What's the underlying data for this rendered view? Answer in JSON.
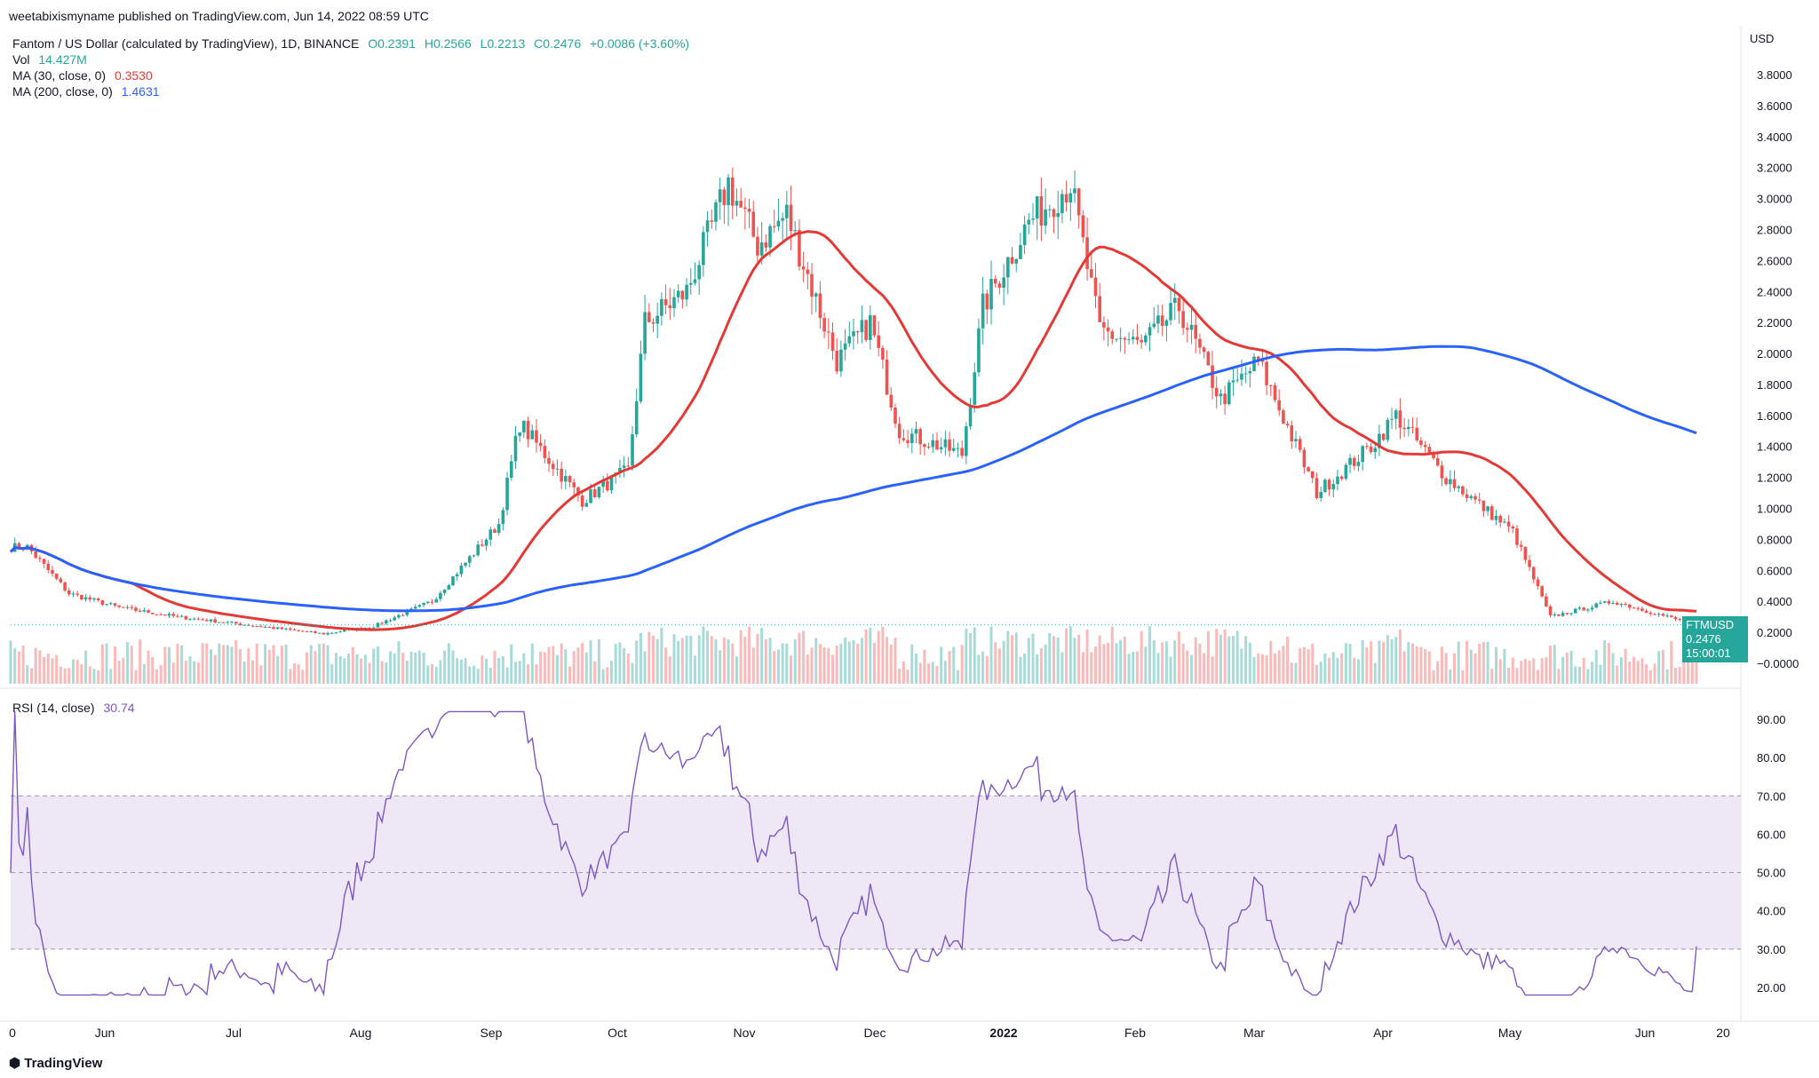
{
  "header": {
    "published": "weetabixismyname published on TradingView.com, Jun 14, 2022 08:59 UTC",
    "symbol_line": "Fantom / US Dollar (calculated by TradingView), 1D, BINANCE",
    "open": "O0.2391",
    "high": "H0.2566",
    "low": "L0.2213",
    "close": "C0.2476",
    "change": "+0.0086 (+3.60%)",
    "vol_label": "Vol",
    "vol_value": "14.427M",
    "ma30_label": "MA (30, close, 0)",
    "ma30_value": "0.3530",
    "ma200_label": "MA (200, close, 0)",
    "ma200_value": "1.4631",
    "rsi_label": "RSI (14, close)",
    "rsi_value": "30.74"
  },
  "price_tag": {
    "symbol": "FTMUSD",
    "price": "0.2476",
    "countdown": "15:00:01"
  },
  "footer": {
    "brand": "TradingView"
  },
  "colors": {
    "up": "#26a69a",
    "down": "#ef5350",
    "ma30": "#e53935",
    "ma200": "#2962ff",
    "rsi": "#7e57c2",
    "rsi_band": "#ede7f6"
  },
  "chart_data": {
    "type": "candlestick",
    "currency": "USD",
    "price_axis_ticks": [
      "3.8000",
      "3.6000",
      "3.4000",
      "3.2000",
      "3.0000",
      "2.8000",
      "2.6000",
      "2.4000",
      "2.2000",
      "2.0000",
      "1.8000",
      "1.6000",
      "1.4000",
      "1.2000",
      "1.0000",
      "0.8000",
      "0.6000",
      "0.4000",
      "0.2000",
      "−0.0000"
    ],
    "rsi_axis_ticks": [
      "90.00",
      "80.00",
      "70.00",
      "60.00",
      "50.00",
      "40.00",
      "30.00",
      "20.00"
    ],
    "time_axis_labels": [
      "0",
      "Jun",
      "Jul",
      "Aug",
      "Sep",
      "Oct",
      "Nov",
      "Dec",
      "2022",
      "Feb",
      "Mar",
      "Apr",
      "May",
      "Jun",
      "20"
    ],
    "price_keypoints": [
      {
        "date": "2021-05-10",
        "close": 0.75
      },
      {
        "date": "2021-05-20",
        "close": 0.45
      },
      {
        "date": "2021-06-01",
        "close": 0.36
      },
      {
        "date": "2021-06-15",
        "close": 0.3
      },
      {
        "date": "2021-07-01",
        "close": 0.25
      },
      {
        "date": "2021-07-20",
        "close": 0.19
      },
      {
        "date": "2021-08-01",
        "close": 0.24
      },
      {
        "date": "2021-08-15",
        "close": 0.4
      },
      {
        "date": "2021-08-31",
        "close": 0.9
      },
      {
        "date": "2021-09-05",
        "close": 1.55
      },
      {
        "date": "2021-09-20",
        "close": 1.05
      },
      {
        "date": "2021-10-01",
        "close": 1.25
      },
      {
        "date": "2021-10-05",
        "close": 2.2
      },
      {
        "date": "2021-10-15",
        "close": 2.4
      },
      {
        "date": "2021-10-25",
        "close": 3.1
      },
      {
        "date": "2021-11-01",
        "close": 2.7
      },
      {
        "date": "2021-11-08",
        "close": 2.9
      },
      {
        "date": "2021-11-20",
        "close": 1.95
      },
      {
        "date": "2021-11-28",
        "close": 2.2
      },
      {
        "date": "2021-12-05",
        "close": 1.5
      },
      {
        "date": "2021-12-20",
        "close": 1.35
      },
      {
        "date": "2021-12-25",
        "close": 2.3
      },
      {
        "date": "2022-01-05",
        "close": 2.85
      },
      {
        "date": "2022-01-15",
        "close": 3.1
      },
      {
        "date": "2022-01-22",
        "close": 2.15
      },
      {
        "date": "2022-02-01",
        "close": 2.05
      },
      {
        "date": "2022-02-10",
        "close": 2.3
      },
      {
        "date": "2022-02-20",
        "close": 1.7
      },
      {
        "date": "2022-03-01",
        "close": 1.95
      },
      {
        "date": "2022-03-15",
        "close": 1.1
      },
      {
        "date": "2022-03-28",
        "close": 1.4
      },
      {
        "date": "2022-04-03",
        "close": 1.6
      },
      {
        "date": "2022-04-15",
        "close": 1.2
      },
      {
        "date": "2022-05-01",
        "close": 0.85
      },
      {
        "date": "2022-05-10",
        "close": 0.3
      },
      {
        "date": "2022-05-25",
        "close": 0.4
      },
      {
        "date": "2022-06-14",
        "close": 0.2476
      }
    ],
    "ma30_last": 0.353,
    "ma200_last": 1.4631,
    "rsi_last": 30.74,
    "rsi_bands": [
      30,
      50,
      70
    ]
  }
}
